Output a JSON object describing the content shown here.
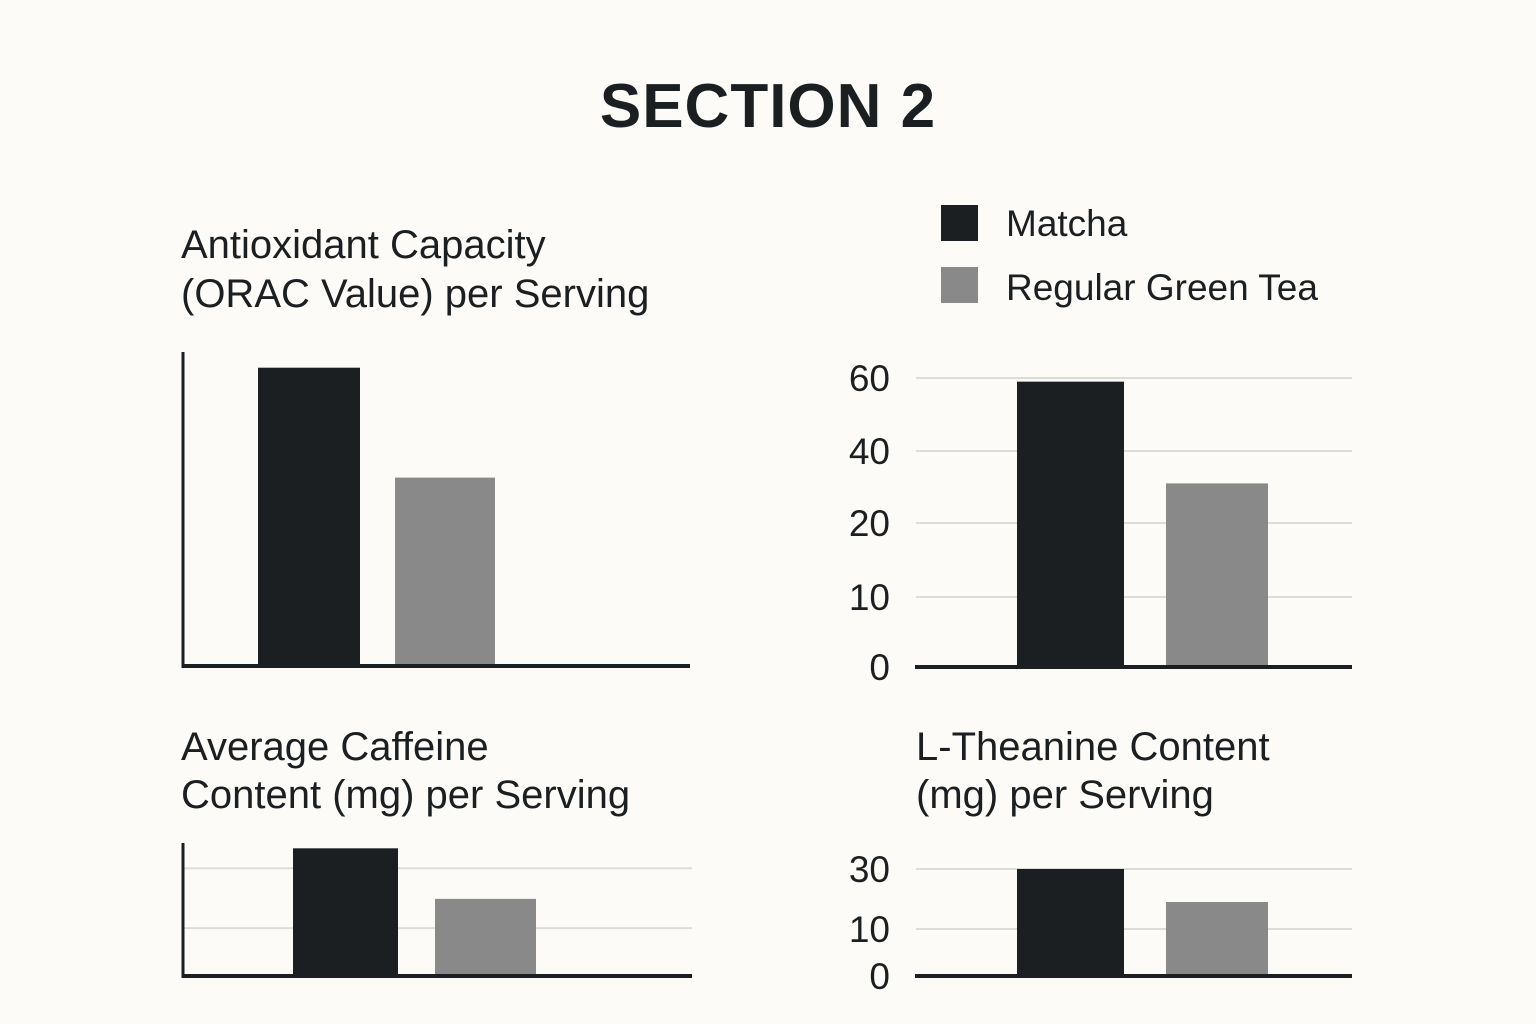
{
  "title": "SECTION 2",
  "legend": [
    {
      "label": "Matcha",
      "color": "#1b1f21"
    },
    {
      "label": "Regular Green Tea",
      "color": "#898989"
    }
  ],
  "chart_data": [
    {
      "type": "bar",
      "title_lines": [
        "Antioxidant Capacity",
        "(ORAC Value) per Serving"
      ],
      "categories": [
        "Matcha",
        "Regular Green Tea"
      ],
      "values": [
        0.95,
        0.6
      ],
      "value_units": "relative (axis unlabeled)",
      "yticks": [],
      "ylim": [
        0,
        1
      ],
      "grid": false
    },
    {
      "type": "bar",
      "title_lines": [],
      "categories": [
        "Matcha",
        "Regular Green Tea"
      ],
      "values": [
        59,
        31
      ],
      "yticks": [
        "0",
        "10",
        "20",
        "40",
        "60"
      ],
      "ylim": [
        0,
        60
      ],
      "grid": true
    },
    {
      "type": "bar",
      "title_lines": [
        "Average Caffeine",
        "Content (mg) per Serving"
      ],
      "categories": [
        "Matcha",
        "Regular Green Tea"
      ],
      "values": [
        0.96,
        0.58
      ],
      "value_units": "relative (axis unlabeled)",
      "yticks": [],
      "gridlines": [
        0.36,
        0.81
      ],
      "ylim": [
        0,
        1
      ],
      "grid": true
    },
    {
      "type": "bar",
      "title_lines": [
        "L-Theanine Content",
        "(mg) per Serving"
      ],
      "categories": [
        "Matcha",
        "Regular Green Tea"
      ],
      "values": [
        30,
        19
      ],
      "yticks": [
        "0",
        "10",
        "30"
      ],
      "ylim": [
        0,
        30
      ],
      "grid": true
    }
  ]
}
